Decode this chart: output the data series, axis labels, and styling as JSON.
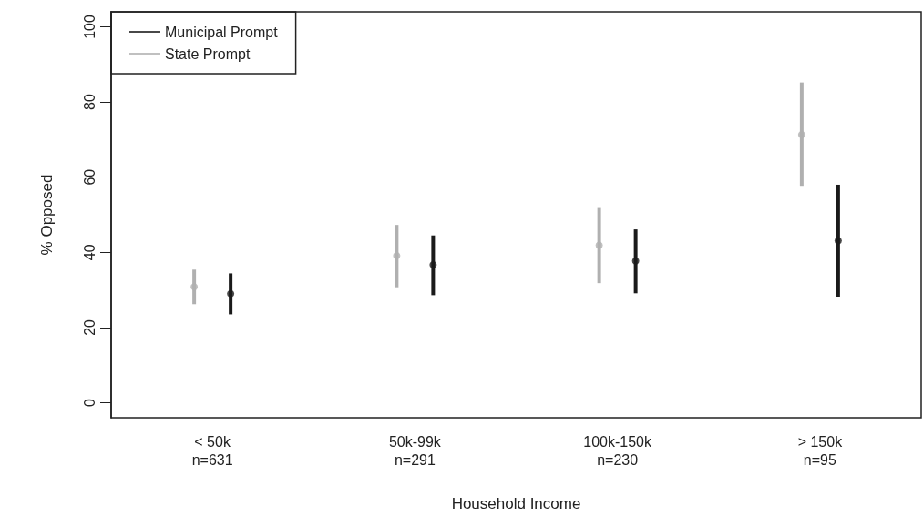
{
  "chart_data": {
    "type": "scatter",
    "xlabel": "Household Income",
    "ylabel": "% Opposed",
    "categories": [
      "< 50k\nn=631",
      "50k-99k\nn=291",
      "100k-150k\nn=230",
      "> 150k\nn=95"
    ],
    "series": [
      {
        "name": "Municipal Prompt",
        "color": "#1a1a1a",
        "values": [
          29.0,
          36.7,
          37.7,
          43.1
        ],
        "errors": [
          [
            23.5,
            34.4
          ],
          [
            28.6,
            44.5
          ],
          [
            29.1,
            46.1
          ],
          [
            28.2,
            58.0
          ]
        ]
      },
      {
        "name": "State Prompt",
        "color": "#b0b0b0",
        "values": [
          30.8,
          39.1,
          41.9,
          71.3
        ],
        "errors": [
          [
            26.2,
            35.4
          ],
          [
            30.7,
            47.3
          ],
          [
            31.8,
            51.8
          ],
          [
            57.7,
            85.2
          ]
        ]
      }
    ],
    "ylim": [
      -4,
      104
    ],
    "yticks": [
      0,
      20,
      40,
      60,
      80,
      100
    ],
    "grid": false,
    "legend": "top left",
    "marker": "circle"
  }
}
